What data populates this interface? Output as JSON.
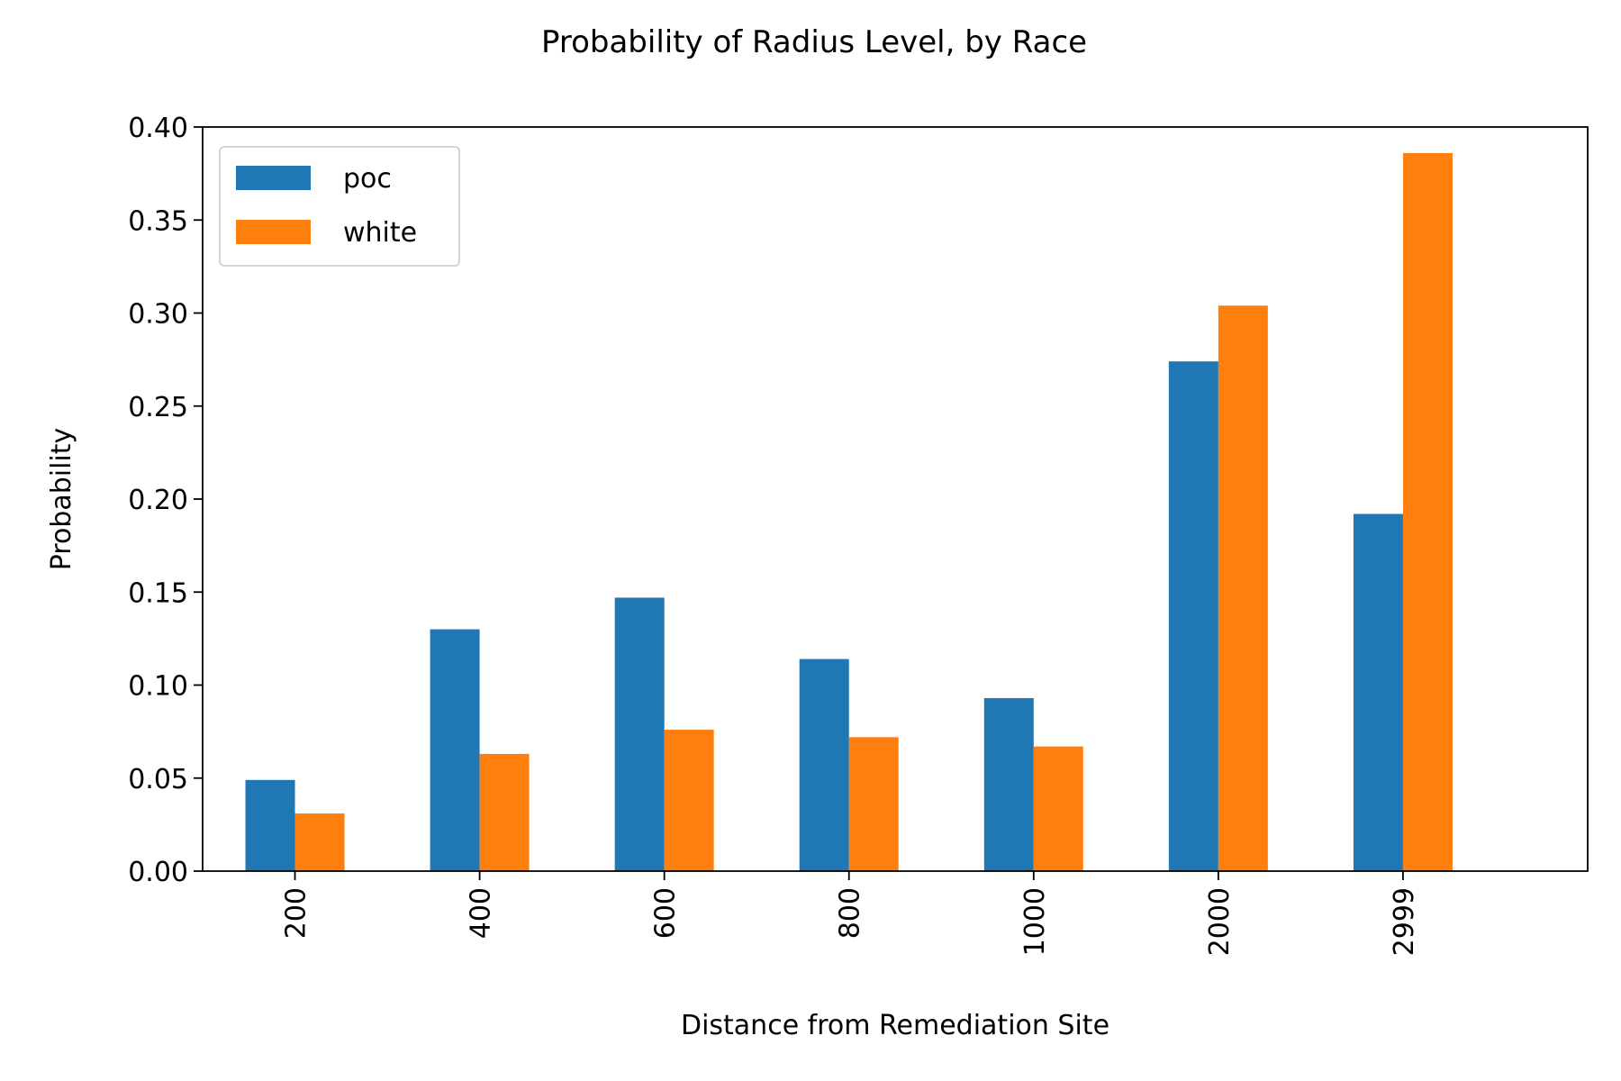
{
  "chart_data": {
    "type": "bar",
    "title": "Probability of Radius Level, by Race",
    "xlabel": "Distance from Remediation Site",
    "ylabel": "Probability",
    "categories": [
      "200",
      "400",
      "600",
      "800",
      "1000",
      "2000",
      "2999"
    ],
    "series": [
      {
        "name": "poc",
        "color": "#1f77b4",
        "values": [
          0.049,
          0.13,
          0.147,
          0.114,
          0.093,
          0.274,
          0.192
        ]
      },
      {
        "name": "white",
        "color": "#ff7f0e",
        "values": [
          0.031,
          0.063,
          0.076,
          0.072,
          0.067,
          0.304,
          0.386
        ]
      }
    ],
    "ylim": [
      0,
      0.4
    ],
    "yticks": [
      "0.00",
      "0.05",
      "0.10",
      "0.15",
      "0.20",
      "0.25",
      "0.30",
      "0.35",
      "0.40"
    ],
    "grid": false,
    "legend_position": "top-left"
  }
}
